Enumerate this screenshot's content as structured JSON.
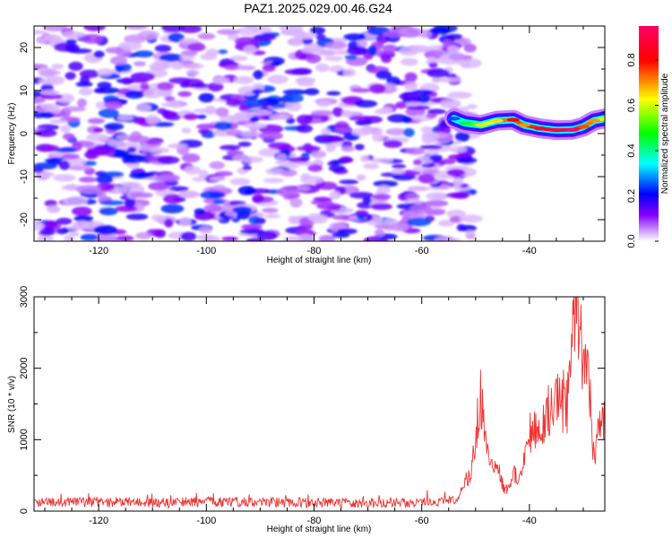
{
  "title": "PAZ1.2025.029.00.46.G24",
  "chart_data": [
    {
      "type": "heatmap",
      "xlabel": "Height of straight line (km)",
      "ylabel": "Frequency (Hz)",
      "xlim": [
        -132,
        -26
      ],
      "ylim": [
        -25,
        25
      ],
      "xticks": [
        -120,
        -100,
        -80,
        -60,
        -40
      ],
      "yticks": [
        -20,
        -10,
        0,
        10,
        20
      ],
      "grid": false,
      "colorbar": {
        "label": "Normalized spectral amplitude",
        "range": [
          0,
          0.95
        ],
        "ticks": [
          0.0,
          0.2,
          0.4,
          0.6,
          0.8
        ],
        "tick_labels": [
          "0.0",
          "0.2",
          "0.4",
          "0.6",
          "0.8"
        ],
        "colors": [
          "#ffffff",
          "#cc99ff",
          "#8800ff",
          "#0000ff",
          "#00ffff",
          "#00ff00",
          "#ffff00",
          "#ff0000",
          "#ff0066"
        ]
      },
      "noise_region": {
        "x_range": [
          -132,
          -52
        ],
        "y_range": [
          -25,
          25
        ],
        "amplitude_range": [
          0.0,
          0.25
        ]
      },
      "signal_ridge": [
        {
          "x": -54,
          "y": 3.5,
          "amplitude": 0.25
        },
        {
          "x": -52,
          "y": 2.5,
          "amplitude": 0.45
        },
        {
          "x": -49,
          "y": 2.0,
          "amplitude": 0.6
        },
        {
          "x": -46,
          "y": 3.0,
          "amplitude": 0.65
        },
        {
          "x": -43,
          "y": 3.2,
          "amplitude": 0.8
        },
        {
          "x": -41,
          "y": 2.0,
          "amplitude": 0.7
        },
        {
          "x": -38,
          "y": 1.2,
          "amplitude": 0.85
        },
        {
          "x": -35,
          "y": 0.8,
          "amplitude": 0.9
        },
        {
          "x": -32,
          "y": 0.9,
          "amplitude": 0.95
        },
        {
          "x": -30,
          "y": 1.6,
          "amplitude": 0.75
        },
        {
          "x": -28,
          "y": 3.0,
          "amplitude": 0.7
        },
        {
          "x": -26,
          "y": 3.5,
          "amplitude": 0.6
        }
      ]
    },
    {
      "type": "line",
      "xlabel": "Height of straight line (km)",
      "ylabel": "SNR (10 * v/v)",
      "xlim": [
        -132,
        -26
      ],
      "ylim": [
        0,
        3000
      ],
      "xticks": [
        -120,
        -100,
        -80,
        -60,
        -40
      ],
      "yticks": [
        0,
        1000,
        2000,
        3000
      ],
      "grid": false,
      "series": [
        {
          "color": "#ee3333",
          "baseline_region": {
            "x_range": [
              -132,
              -52
            ],
            "typical": 120,
            "range": [
              40,
              330
            ]
          },
          "x": [
            -132,
            -124,
            -116,
            -108,
            -100,
            -92,
            -84,
            -76,
            -68,
            -60,
            -56,
            -53,
            -51,
            -50,
            -49,
            -48,
            -47,
            -46,
            -45,
            -44,
            -43,
            -42,
            -41,
            -40,
            -39,
            -38,
            -37,
            -36,
            -35,
            -34,
            -33,
            -32,
            -31,
            -30,
            -29,
            -28,
            -27,
            -26
          ],
          "y": [
            130,
            120,
            125,
            115,
            130,
            125,
            120,
            120,
            115,
            120,
            130,
            180,
            550,
            1000,
            1650,
            900,
            650,
            550,
            400,
            300,
            600,
            450,
            800,
            1100,
            1200,
            1200,
            1450,
            1350,
            1700,
            1650,
            1450,
            2400,
            2950,
            2000,
            1900,
            700,
            1200,
            1250
          ]
        }
      ]
    }
  ]
}
